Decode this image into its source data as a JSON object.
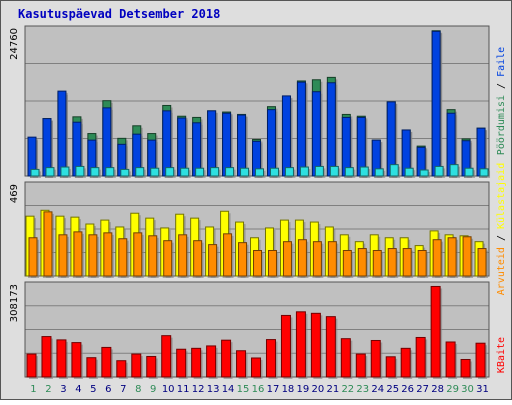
{
  "title": "Kasutuspäevad Detsember 2018",
  "colors": {
    "panel_bg": "#c0c0c0",
    "frame_bg": "#dedede",
    "page": "#2e8b57",
    "hit": "#0042e0",
    "file": "#2ee0e0",
    "visit": "#ffff00",
    "visitor": "#ff8c00",
    "kbyte": "#ff0000",
    "weekend_day": "#2e8b57",
    "weekday": "#000080"
  },
  "chart_data": [
    {
      "type": "bar",
      "panel": "top",
      "ytick": "24760",
      "ylim": [
        0,
        24760
      ],
      "categories": [
        "1",
        "2",
        "3",
        "4",
        "5",
        "6",
        "7",
        "8",
        "9",
        "10",
        "11",
        "12",
        "13",
        "14",
        "15",
        "16",
        "17",
        "18",
        "19",
        "20",
        "21",
        "22",
        "23",
        "24",
        "25",
        "26",
        "27",
        "28",
        "29",
        "30",
        "31"
      ],
      "weekend_days": [
        "1",
        "2",
        "8",
        "9",
        "15",
        "16",
        "22",
        "23",
        "29",
        "30"
      ],
      "series": [
        {
          "name": "Pöördumisi",
          "color": "#2e8b57",
          "values": [
            6300,
            9600,
            13900,
            9900,
            7100,
            12600,
            6300,
            8400,
            7100,
            11800,
            10000,
            9800,
            10900,
            10700,
            10300,
            6100,
            11600,
            13300,
            15900,
            16100,
            16500,
            10300,
            10000,
            6000,
            12400,
            7700,
            5000,
            24300,
            11100,
            6200,
            8000
          ]
        },
        {
          "name": "Faile",
          "color": "#0042e0",
          "values": [
            6500,
            9600,
            14200,
            9000,
            6000,
            11400,
            5300,
            7000,
            6000,
            10900,
            9700,
            8900,
            10900,
            10500,
            10200,
            5800,
            11100,
            13400,
            15700,
            14100,
            15600,
            9800,
            9800,
            6000,
            12400,
            7700,
            4800,
            24200,
            10500,
            5900,
            8000
          ]
        },
        {
          "name": "",
          "color": "#2ee0e0",
          "values": [
            1100,
            1400,
            1500,
            1600,
            1400,
            1400,
            1100,
            1400,
            1300,
            1400,
            1300,
            1300,
            1400,
            1400,
            1300,
            1200,
            1300,
            1400,
            1500,
            1600,
            1600,
            1400,
            1500,
            1200,
            1900,
            1300,
            1000,
            1600,
            1900,
            1300,
            1200
          ]
        }
      ]
    },
    {
      "type": "bar",
      "panel": "middle",
      "ytick": "469",
      "ylim": [
        0,
        469
      ],
      "categories": [
        "1",
        "2",
        "3",
        "4",
        "5",
        "6",
        "7",
        "8",
        "9",
        "10",
        "11",
        "12",
        "13",
        "14",
        "15",
        "16",
        "17",
        "18",
        "19",
        "20",
        "21",
        "22",
        "23",
        "24",
        "25",
        "26",
        "27",
        "28",
        "29",
        "30",
        "31"
      ],
      "series": [
        {
          "name": "Külastajaid",
          "color": "#ffff00",
          "values": [
            305,
            335,
            305,
            300,
            265,
            285,
            250,
            320,
            295,
            245,
            315,
            295,
            250,
            330,
            275,
            195,
            245,
            285,
            285,
            275,
            250,
            210,
            175,
            210,
            195,
            195,
            155,
            230,
            210,
            205,
            175
          ]
        },
        {
          "name": "Arvuteid",
          "color": "#ff8c00",
          "values": [
            195,
            327,
            210,
            225,
            210,
            220,
            190,
            220,
            205,
            180,
            210,
            180,
            160,
            215,
            170,
            130,
            130,
            175,
            185,
            175,
            175,
            130,
            140,
            130,
            140,
            140,
            130,
            185,
            195,
            200,
            140
          ]
        }
      ]
    },
    {
      "type": "bar",
      "panel": "bottom",
      "ytick": "308173",
      "ylim": [
        0,
        308173
      ],
      "categories": [
        "1",
        "2",
        "3",
        "4",
        "5",
        "6",
        "7",
        "8",
        "9",
        "10",
        "11",
        "12",
        "13",
        "14",
        "15",
        "16",
        "17",
        "18",
        "19",
        "20",
        "21",
        "22",
        "23",
        "24",
        "25",
        "26",
        "27",
        "28",
        "29",
        "30",
        "31"
      ],
      "series": [
        {
          "name": "KBaite",
          "color": "#ff0000",
          "values": [
            76000,
            134000,
            123000,
            114000,
            64000,
            98000,
            54000,
            76000,
            68000,
            137000,
            92000,
            95000,
            103000,
            122000,
            87000,
            63000,
            124000,
            204000,
            216000,
            211000,
            200000,
            127000,
            76000,
            121000,
            67000,
            95000,
            131000,
            300000,
            116000,
            58000,
            112000
          ]
        }
      ]
    }
  ],
  "right_labels": {
    "top": {
      "sep": "/",
      "items": [
        "Pöördumisi",
        "Faile"
      ]
    },
    "middle": {
      "sep": "/",
      "items": [
        "Arvuteid",
        "Külastajaid"
      ]
    },
    "bottom": {
      "items": [
        "KBaite"
      ]
    }
  }
}
